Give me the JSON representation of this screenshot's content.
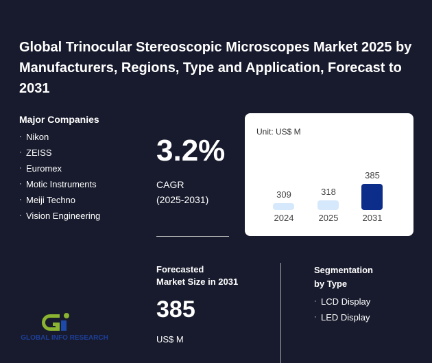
{
  "title": "Global Trinocular Stereoscopic Microscopes Market 2025 by Manufacturers, Regions, Type and Application, Forecast to 2031",
  "companies": {
    "heading": "Major Companies",
    "items": [
      "Nikon",
      "ZEISS",
      "Euromex",
      "Motic Instruments",
      "Meiji Techno",
      "Vision Engineering"
    ]
  },
  "cagr": {
    "value": "3.2%",
    "label": "CAGR",
    "period": "(2025-2031)"
  },
  "chart_data": {
    "type": "bar",
    "unit": "Unit: US$ M",
    "categories": [
      "2024",
      "2025",
      "2031"
    ],
    "values": [
      309,
      318,
      385
    ],
    "colors": [
      "#d6e8fb",
      "#d6e8fb",
      "#0d2d8a"
    ]
  },
  "forecast": {
    "heading_line1": "Forecasted",
    "heading_line2": "Market Size in 2031",
    "value": "385",
    "unit": "US$ M"
  },
  "segmentation": {
    "heading_line1": "Segmentation",
    "heading_line2": "by Type",
    "items": [
      "LCD Display",
      "LED Display"
    ]
  },
  "logo": {
    "text": "GLOBAL INFO RESEARCH"
  }
}
